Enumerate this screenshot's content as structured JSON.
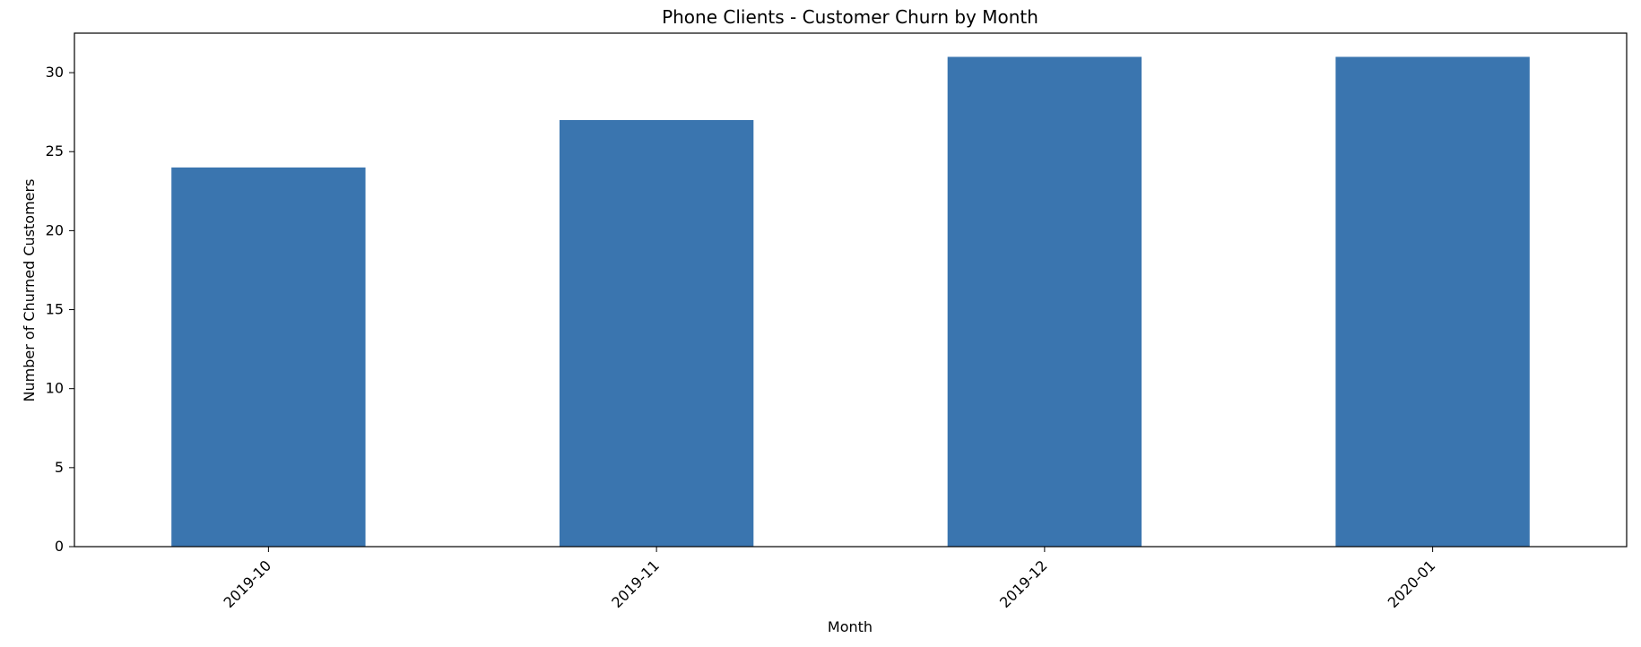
{
  "chart_data": {
    "type": "bar",
    "title": "Phone Clients - Customer Churn by Month",
    "xlabel": "Month",
    "ylabel": "Number of Churned Customers",
    "categories": [
      "2019-10",
      "2019-11",
      "2019-12",
      "2020-01"
    ],
    "values": [
      24,
      27,
      31,
      31
    ],
    "ylim": [
      0,
      32.5
    ],
    "yticks": [
      0,
      5,
      10,
      15,
      20,
      25,
      30
    ],
    "xtick_rotation": 45,
    "bar_color": "#3a75af",
    "grid": false,
    "legend": "none"
  }
}
